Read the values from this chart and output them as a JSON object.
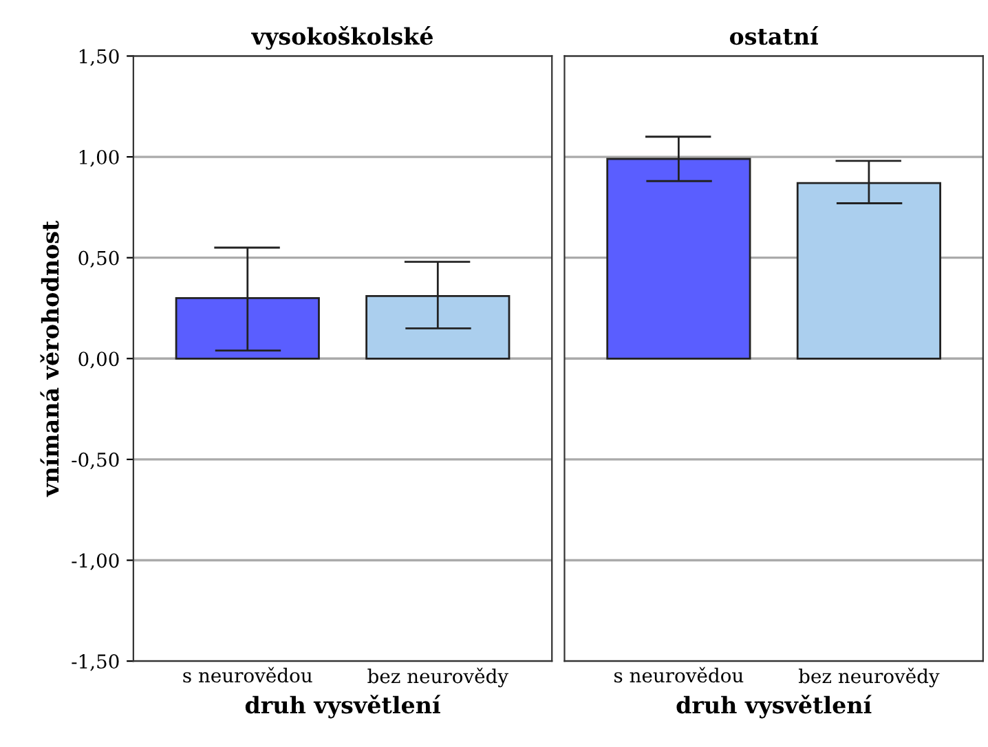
{
  "chart_data": [
    {
      "type": "bar",
      "title": "vysokoškolské",
      "xlabel": "druh vysvětlení",
      "ylabel": "vnímaná věrohodnost",
      "categories": [
        "s neurovědou",
        "bez neurovědy"
      ],
      "values": [
        0.3,
        0.31
      ],
      "colors": [
        "#5a5eff",
        "#abcfee"
      ],
      "errors": [
        [
          0.04,
          0.55
        ],
        [
          0.15,
          0.48
        ]
      ],
      "ylim": [
        -1.5,
        1.5
      ],
      "yticks": [
        {
          "value": -1.5,
          "label": "-1,50"
        },
        {
          "value": -1.0,
          "label": "-1,00"
        },
        {
          "value": -0.5,
          "label": "-0,50"
        },
        {
          "value": 0,
          "label": "0,00"
        },
        {
          "value": 0.5,
          "label": "0,50"
        },
        {
          "value": 1.0,
          "label": "1,00"
        },
        {
          "value": 1.5,
          "label": "1,50"
        }
      ],
      "grid": "y"
    },
    {
      "type": "bar",
      "title": "ostatní",
      "xlabel": "druh vysvětlení",
      "categories": [
        "s neurovědou",
        "bez neurovědy"
      ],
      "values": [
        0.99,
        0.87
      ],
      "colors": [
        "#5a5eff",
        "#abcfee"
      ],
      "errors": [
        [
          0.88,
          1.1
        ],
        [
          0.77,
          0.98
        ]
      ],
      "ylim": [
        -1.5,
        1.5
      ],
      "yticks": [
        -1.5,
        -1.0,
        -0.5,
        0,
        0.5,
        1.0,
        1.5
      ],
      "grid": "y",
      "tick_labels": "x"
    }
  ]
}
